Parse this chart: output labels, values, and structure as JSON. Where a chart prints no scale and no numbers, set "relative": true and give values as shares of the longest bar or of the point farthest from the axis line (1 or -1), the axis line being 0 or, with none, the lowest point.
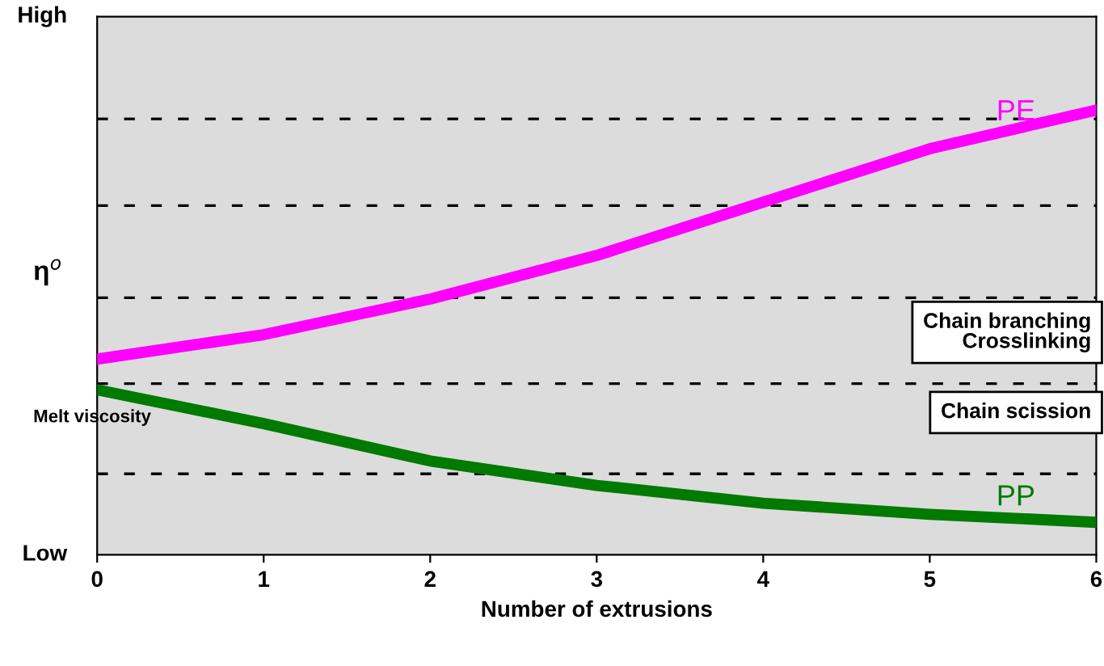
{
  "chart_data": {
    "type": "line",
    "relative": true,
    "xlabel": "Number of extrusions",
    "ylabel": "η$^{o}$",
    "x": [
      0,
      1,
      2,
      3,
      4,
      5,
      6
    ],
    "xlim": [
      0,
      6
    ],
    "xticks": [
      0,
      1,
      2,
      3,
      4,
      5,
      6
    ],
    "series": [
      {
        "name": "PE",
        "color": "#ff00ff",
        "values": [
          0.44,
          0.495,
          0.575,
          0.673,
          0.793,
          0.913,
          1.0
        ]
      },
      {
        "name": "PP",
        "color": "#007a00",
        "values": [
          0.371,
          0.295,
          0.211,
          0.156,
          0.116,
          0.091,
          0.073
        ]
      }
    ],
    "ref_lines": [
      {
        "axis": "y",
        "value": 0.182,
        "line_style": "dashed",
        "color": "#000000"
      },
      {
        "axis": "y",
        "value": 0.385,
        "line_style": "dashed",
        "color": "#000000"
      },
      {
        "axis": "y",
        "value": 0.578,
        "line_style": "dashed",
        "color": "#000000"
      },
      {
        "axis": "y",
        "value": 0.785,
        "line_style": "dashed",
        "color": "#000000"
      },
      {
        "axis": "y",
        "value": 0.98,
        "line_style": "dashed",
        "color": "#000000"
      }
    ],
    "annotations": [
      "High",
      "Low",
      "Melt viscosity",
      "Chain branching\nCrosslinking",
      "Chain scission"
    ],
    "legend": false,
    "grid": false,
    "marker": "none"
  }
}
